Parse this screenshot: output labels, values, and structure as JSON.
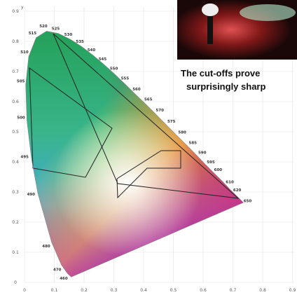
{
  "axes": {
    "y_label": "y",
    "x_ticks": [
      "0",
      "0.1",
      "0.2",
      "0.3",
      "0.4",
      "0.5",
      "0.6",
      "0.7",
      "0.8",
      "0.9"
    ],
    "y_ticks": [
      "0",
      "0.1",
      "0.2",
      "0.3",
      "0.4",
      "0.5",
      "0.6",
      "0.7",
      "0.8",
      "0.9"
    ]
  },
  "wavelengths": [
    "460",
    "470",
    "480",
    "490",
    "495",
    "500",
    "505",
    "510",
    "515",
    "520",
    "525",
    "530",
    "535",
    "540",
    "545",
    "550",
    "555",
    "560",
    "565",
    "570",
    "575",
    "580",
    "585",
    "590",
    "595",
    "600",
    "610",
    "620",
    "650"
  ],
  "caption": {
    "line1": "The cut-offs prove",
    "line2": "surprisingly sharp"
  }
}
